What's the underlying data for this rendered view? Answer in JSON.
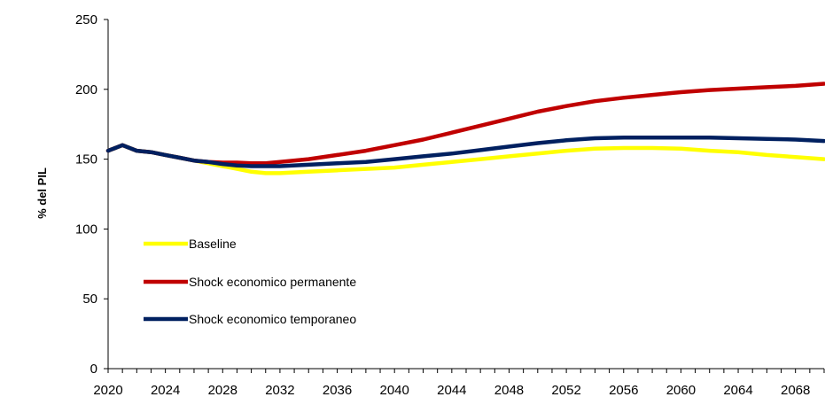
{
  "chart_data": {
    "type": "line",
    "ylabel": "% del PIL",
    "xlabel": "",
    "title": "",
    "ylim": [
      0,
      250
    ],
    "xlim": [
      2020,
      2070
    ],
    "y_ticks": [
      0,
      50,
      100,
      150,
      200,
      250
    ],
    "x_tick_labels": [
      "2020",
      "2024",
      "2028",
      "2032",
      "2036",
      "2040",
      "2044",
      "2048",
      "2052",
      "2056",
      "2060",
      "2064",
      "2068"
    ],
    "legend_position": "left-middle",
    "grid": false,
    "series": [
      {
        "name": "Baseline",
        "color": "#FFFF00",
        "x": [
          2020,
          2021,
          2022,
          2023,
          2024,
          2025,
          2026,
          2027,
          2028,
          2029,
          2030,
          2031,
          2032,
          2034,
          2036,
          2038,
          2040,
          2042,
          2044,
          2046,
          2048,
          2050,
          2052,
          2054,
          2056,
          2058,
          2060,
          2062,
          2064,
          2066,
          2068,
          2070
        ],
        "values": [
          156,
          160,
          156,
          155,
          153,
          151,
          149,
          147,
          145,
          143,
          141,
          140,
          140,
          141,
          142,
          143,
          144,
          146,
          148,
          150,
          152,
          154,
          156,
          157.5,
          158,
          158,
          157.5,
          156,
          155,
          153,
          151.5,
          150
        ]
      },
      {
        "name": "Shock economico permanente",
        "color": "#C00000",
        "x": [
          2020,
          2021,
          2022,
          2023,
          2024,
          2025,
          2026,
          2027,
          2028,
          2029,
          2030,
          2031,
          2032,
          2034,
          2036,
          2038,
          2040,
          2042,
          2044,
          2046,
          2048,
          2050,
          2052,
          2054,
          2056,
          2058,
          2060,
          2062,
          2064,
          2066,
          2068,
          2070
        ],
        "values": [
          156,
          160,
          156,
          155,
          153,
          151,
          149,
          148,
          147.5,
          147.5,
          147,
          147,
          148,
          150,
          153,
          156,
          160,
          164,
          169,
          174,
          179,
          184,
          188,
          191.5,
          194,
          196,
          198,
          199.5,
          200.5,
          201.5,
          202.5,
          204
        ]
      },
      {
        "name": "Shock economico temporaneo",
        "color": "#002060",
        "x": [
          2020,
          2021,
          2022,
          2023,
          2024,
          2025,
          2026,
          2027,
          2028,
          2029,
          2030,
          2031,
          2032,
          2034,
          2036,
          2038,
          2040,
          2042,
          2044,
          2046,
          2048,
          2050,
          2052,
          2054,
          2056,
          2058,
          2060,
          2062,
          2064,
          2066,
          2068,
          2070
        ],
        "values": [
          156,
          160,
          156,
          155,
          153,
          151,
          149,
          148,
          146.5,
          145.5,
          145,
          145,
          145,
          146,
          147,
          148,
          150,
          152,
          154,
          156.5,
          159,
          161.5,
          163.5,
          165,
          165.5,
          165.5,
          165.5,
          165.5,
          165,
          164.5,
          164,
          163
        ]
      }
    ]
  }
}
